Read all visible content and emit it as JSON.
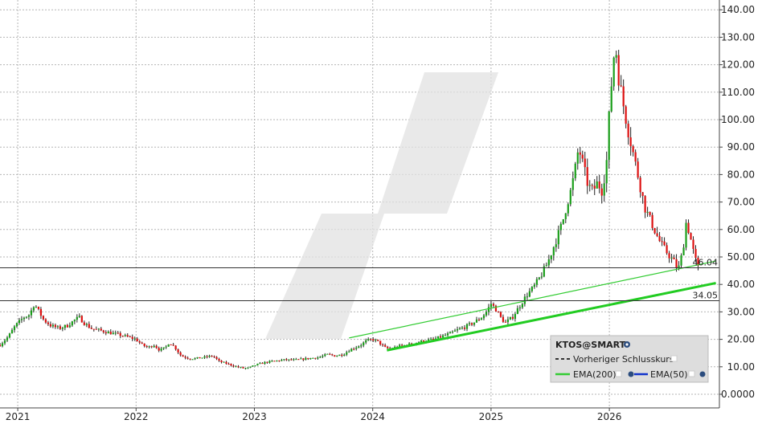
{
  "chart_data": {
    "type": "candlestick",
    "symbol": "KTOS@SMART",
    "y_axis": {
      "position": "right",
      "range": [
        0,
        140
      ],
      "ticks": [
        "140.00",
        "130.00",
        "120.00",
        "110.00",
        "100.00",
        "90.00",
        "80.00",
        "70.00",
        "60.00",
        "50.00",
        "40.00",
        "30.00",
        "20.00",
        "10.00",
        "0.0000"
      ],
      "tick_values": [
        140,
        130,
        120,
        110,
        100,
        90,
        80,
        70,
        60,
        50,
        40,
        30,
        20,
        10,
        0
      ]
    },
    "x_axis": {
      "range_years": [
        2020.85,
        2026.93
      ],
      "ticks": [
        "2021",
        "2022",
        "2023",
        "2024",
        "2025",
        "2026"
      ],
      "tick_values": [
        2021,
        2022,
        2023,
        2024,
        2025,
        2026
      ]
    },
    "grid": true,
    "horizontal_lines": [
      {
        "value": 46.04,
        "label": "46.04",
        "color": "#333333"
      },
      {
        "value": 34.05,
        "label": "34.05",
        "color": "#333333"
      }
    ],
    "trendlines": [
      {
        "from": [
          2023.8,
          20.5
        ],
        "to": [
          2026.9,
          48.5
        ],
        "color": "#33cc33",
        "width": "thin"
      },
      {
        "from": [
          2024.12,
          16.0
        ],
        "to": [
          2026.9,
          40.5
        ],
        "color": "#22cc22",
        "width": "thick"
      }
    ],
    "price_path": [
      [
        2020.85,
        18
      ],
      [
        2020.92,
        21
      ],
      [
        2020.98,
        25
      ],
      [
        2021.05,
        28
      ],
      [
        2021.1,
        29
      ],
      [
        2021.14,
        33
      ],
      [
        2021.18,
        30
      ],
      [
        2021.22,
        27
      ],
      [
        2021.28,
        25
      ],
      [
        2021.35,
        24
      ],
      [
        2021.42,
        25
      ],
      [
        2021.48,
        27
      ],
      [
        2021.52,
        28
      ],
      [
        2021.56,
        26
      ],
      [
        2021.62,
        24
      ],
      [
        2021.72,
        23
      ],
      [
        2021.82,
        22
      ],
      [
        2021.92,
        21
      ],
      [
        2022.0,
        20
      ],
      [
        2022.05,
        18
      ],
      [
        2022.1,
        17
      ],
      [
        2022.15,
        18
      ],
      [
        2022.2,
        16
      ],
      [
        2022.25,
        17
      ],
      [
        2022.28,
        19
      ],
      [
        2022.33,
        17
      ],
      [
        2022.38,
        14
      ],
      [
        2022.45,
        13
      ],
      [
        2022.5,
        13
      ],
      [
        2022.58,
        13.5
      ],
      [
        2022.65,
        14
      ],
      [
        2022.7,
        12
      ],
      [
        2022.78,
        11
      ],
      [
        2022.85,
        10
      ],
      [
        2022.9,
        9.5
      ],
      [
        2022.95,
        9.5
      ],
      [
        2023.0,
        10.5
      ],
      [
        2023.08,
        11.5
      ],
      [
        2023.15,
        12
      ],
      [
        2023.25,
        12.5
      ],
      [
        2023.35,
        12.5
      ],
      [
        2023.45,
        13
      ],
      [
        2023.55,
        13.5
      ],
      [
        2023.62,
        14.5
      ],
      [
        2023.68,
        14
      ],
      [
        2023.75,
        14.5
      ],
      [
        2023.8,
        16
      ],
      [
        2023.85,
        17
      ],
      [
        2023.9,
        18
      ],
      [
        2023.95,
        19.5
      ],
      [
        2024.0,
        20
      ],
      [
        2024.05,
        19
      ],
      [
        2024.1,
        17
      ],
      [
        2024.15,
        16.5
      ],
      [
        2024.22,
        17.5
      ],
      [
        2024.3,
        18
      ],
      [
        2024.38,
        19
      ],
      [
        2024.45,
        19.5
      ],
      [
        2024.52,
        20
      ],
      [
        2024.58,
        21
      ],
      [
        2024.65,
        22
      ],
      [
        2024.72,
        23.5
      ],
      [
        2024.78,
        24.5
      ],
      [
        2024.85,
        26
      ],
      [
        2024.92,
        28
      ],
      [
        2024.96,
        30
      ],
      [
        2025.0,
        33
      ],
      [
        2025.04,
        31
      ],
      [
        2025.08,
        28
      ],
      [
        2025.12,
        26
      ],
      [
        2025.18,
        28
      ],
      [
        2025.24,
        32
      ],
      [
        2025.3,
        36
      ],
      [
        2025.36,
        39
      ],
      [
        2025.42,
        43
      ],
      [
        2025.48,
        48
      ],
      [
        2025.54,
        55
      ],
      [
        2025.6,
        62
      ],
      [
        2025.64,
        69
      ],
      [
        2025.68,
        75
      ],
      [
        2025.72,
        84
      ],
      [
        2025.74,
        90
      ],
      [
        2025.78,
        83
      ],
      [
        2025.82,
        76
      ],
      [
        2025.86,
        74
      ],
      [
        2025.9,
        77
      ],
      [
        2025.94,
        74
      ],
      [
        2025.98,
        86
      ],
      [
        2026.0,
        103
      ],
      [
        2026.03,
        120
      ],
      [
        2026.05,
        128
      ],
      [
        2026.08,
        115
      ],
      [
        2026.12,
        105
      ],
      [
        2026.16,
        96
      ],
      [
        2026.2,
        88
      ],
      [
        2026.25,
        78
      ],
      [
        2026.3,
        68
      ],
      [
        2026.35,
        63
      ],
      [
        2026.42,
        56
      ],
      [
        2026.48,
        52
      ],
      [
        2026.55,
        48
      ],
      [
        2026.58,
        45
      ],
      [
        2026.62,
        52
      ],
      [
        2026.65,
        63
      ],
      [
        2026.68,
        58
      ],
      [
        2026.72,
        50
      ],
      [
        2026.75,
        46
      ]
    ],
    "series": [
      {
        "name": "Vorheriger Schlusskurs",
        "style": "dashed",
        "color": "#333333"
      },
      {
        "name": "EMA(200)",
        "style": "solid",
        "color": "#33cc33"
      },
      {
        "name": "EMA(50)",
        "style": "solid",
        "color": "#1133cc"
      }
    ],
    "colors": {
      "up": "#1a9e1a",
      "down": "#dd1111"
    }
  }
}
